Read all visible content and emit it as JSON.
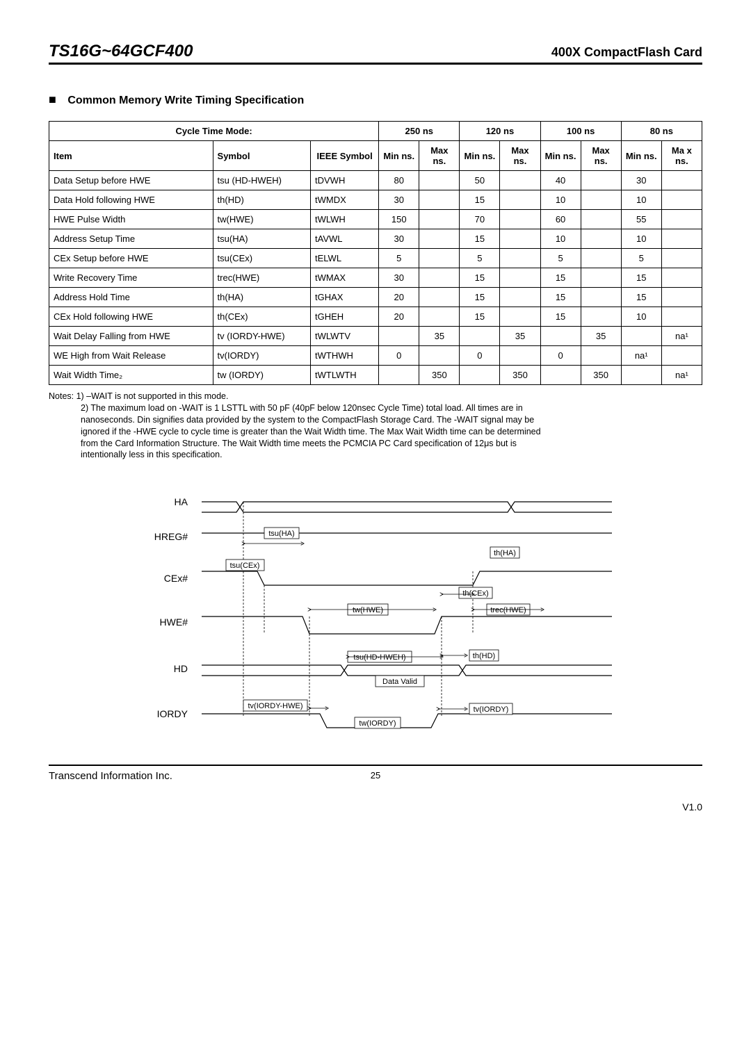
{
  "header": {
    "left": "TS16G~64GCF400",
    "right": "400X CompactFlash Card"
  },
  "section_title": "Common Memory Write Timing Specification",
  "table": {
    "cycle_label": "Cycle Time Mode:",
    "modes": [
      "250 ns",
      "120 ns",
      "100 ns",
      "80 ns"
    ],
    "col_item": "Item",
    "col_symbol": "Symbol",
    "col_ieee": "IEEE Symbol",
    "col_min": "Min ns.",
    "col_max": "Max ns.",
    "col_max_80": "Ma x ns.",
    "rows": [
      {
        "item": "Data Setup before HWE",
        "symbol": "tsu (HD-HWEH)",
        "ieee": "tDVWH",
        "v": [
          "80",
          "",
          "50",
          "",
          "40",
          "",
          "30",
          ""
        ]
      },
      {
        "item": "Data Hold following HWE",
        "symbol": "th(HD)",
        "ieee": "tWMDX",
        "v": [
          "30",
          "",
          "15",
          "",
          "10",
          "",
          "10",
          ""
        ]
      },
      {
        "item": "HWE Pulse Width",
        "symbol": "tw(HWE)",
        "ieee": "tWLWH",
        "v": [
          "150",
          "",
          "70",
          "",
          "60",
          "",
          "55",
          ""
        ]
      },
      {
        "item": "Address Setup Time",
        "symbol": "tsu(HA)",
        "ieee": "tAVWL",
        "v": [
          "30",
          "",
          "15",
          "",
          "10",
          "",
          "10",
          ""
        ]
      },
      {
        "item": "CEx Setup before HWE",
        "symbol": "tsu(CEx)",
        "ieee": "tELWL",
        "v": [
          "5",
          "",
          "5",
          "",
          "5",
          "",
          "5",
          ""
        ]
      },
      {
        "item": "Write Recovery Time",
        "symbol": "trec(HWE)",
        "ieee": "tWMAX",
        "v": [
          "30",
          "",
          "15",
          "",
          "15",
          "",
          "15",
          ""
        ]
      },
      {
        "item": "Address Hold Time",
        "symbol": "th(HA)",
        "ieee": "tGHAX",
        "v": [
          "20",
          "",
          "15",
          "",
          "15",
          "",
          "15",
          ""
        ]
      },
      {
        "item": "CEx Hold following HWE",
        "symbol": "th(CEx)",
        "ieee": "tGHEH",
        "v": [
          "20",
          "",
          "15",
          "",
          "15",
          "",
          "10",
          ""
        ]
      },
      {
        "item": "Wait Delay Falling from HWE",
        "symbol": "tv (IORDY-HWE)",
        "ieee": "tWLWTV",
        "v": [
          "",
          "35",
          "",
          "35",
          "",
          "35",
          "",
          "na¹"
        ]
      },
      {
        "item": "WE High from Wait Release",
        "symbol": "tv(IORDY)",
        "ieee": "tWTHWH",
        "v": [
          "0",
          "",
          "0",
          "",
          "0",
          "",
          "na¹",
          ""
        ]
      },
      {
        "item": "Wait Width Time₂",
        "symbol": "tw (IORDY)",
        "ieee": "tWTLWTH",
        "v": [
          "",
          "350",
          "",
          "350",
          "",
          "350",
          "",
          "na¹"
        ]
      }
    ]
  },
  "notes": {
    "n1": "Notes: 1) –WAIT is not supported in this mode.",
    "n2a": "2) The maximum load on -WAIT is 1 LSTTL with 50 pF (40pF below 120nsec Cycle Time) total load. All times are in",
    "n2b": "nanoseconds. Din signifies data provided by the system to the CompactFlash Storage Card. The -WAIT signal may be",
    "n2c": "ignored if the -HWE cycle to cycle time is greater than the Wait Width time. The Max Wait Width time can be determined",
    "n2d": "from the Card Information Structure. The Wait Width time meets the PCMCIA PC Card specification of 12μs but is",
    "n2e": "intentionally less in this specification."
  },
  "diagram": {
    "signals": [
      "HA",
      "HREG#",
      "CEx#",
      "HWE#",
      "HD",
      "IORDY"
    ],
    "labels": {
      "tsuHA": "tsu(HA)",
      "thHA": "th(HA)",
      "tsuCEx": "tsu(CEx)",
      "thCEx": "th(CEx)",
      "twHWE": "tw(HWE)",
      "trecHWE": "trec(HWE)",
      "tsuHD": "tsu(HD-HWEH)",
      "thHD": "th(HD)",
      "dataValid": "Data Valid",
      "tvIORDYHWE": "tv(IORDY-HWE)",
      "twIORDY": "tw(IORDY)",
      "tvIORDY": "tv(IORDY)"
    },
    "colors": {
      "line": "#000",
      "bg": "#fff",
      "text": "#000",
      "box": "#fff"
    }
  },
  "footer": {
    "left": "Transcend Information Inc.",
    "page": "25",
    "version": "V1.0"
  }
}
